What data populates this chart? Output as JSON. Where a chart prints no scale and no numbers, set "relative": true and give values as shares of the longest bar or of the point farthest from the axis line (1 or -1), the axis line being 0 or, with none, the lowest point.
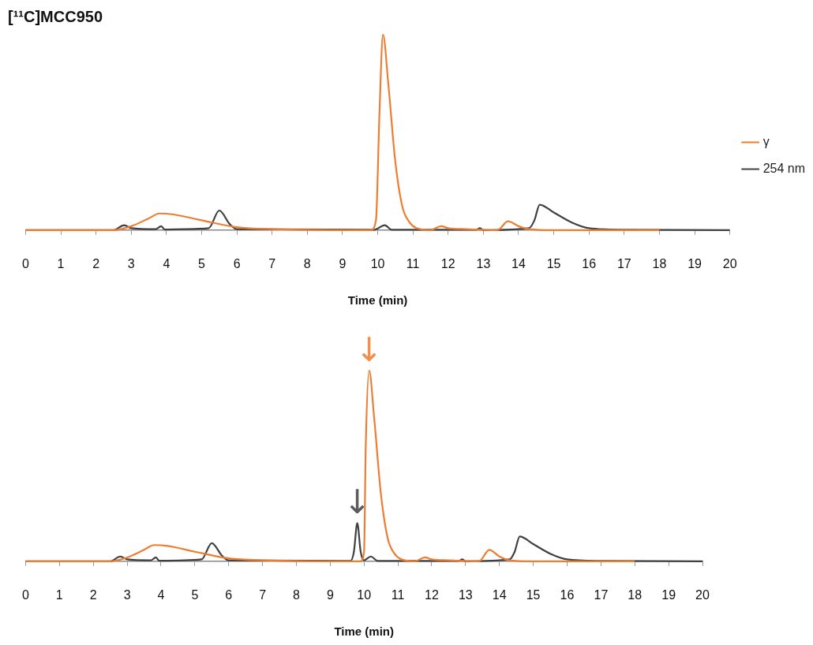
{
  "chart_data": [
    {
      "type": "line",
      "title": "[¹¹C]MCC950",
      "xlabel": "Time (min)",
      "relative": true,
      "xlim": [
        0,
        20
      ],
      "xticks": [
        0,
        1,
        2,
        3,
        4,
        5,
        6,
        7,
        8,
        9,
        10,
        11,
        12,
        13,
        14,
        15,
        16,
        17,
        18,
        19,
        20
      ],
      "grid": false,
      "legend": "right",
      "marker": "none",
      "line_style": "solid",
      "series": [
        {
          "name": "γ",
          "color": "#ed7d31",
          "x": [
            0,
            2.5,
            3,
            3.5,
            3.8,
            4.2,
            5,
            6,
            7,
            9.8,
            9.95,
            10.05,
            10.15,
            10.3,
            10.5,
            10.7,
            10.9,
            11.1,
            11.5,
            11.8,
            12,
            12.5,
            13.4,
            13.7,
            14,
            14.3,
            15,
            18
          ],
          "values": [
            0,
            0,
            0.02,
            0.06,
            0.085,
            0.08,
            0.05,
            0.015,
            0.005,
            0,
            0.05,
            0.6,
            1,
            0.75,
            0.35,
            0.12,
            0.04,
            0.01,
            0,
            0.02,
            0.01,
            0.005,
            0,
            0.045,
            0.02,
            0.005,
            0,
            0
          ]
        },
        {
          "name": "254 nm",
          "color": "#404040",
          "x": [
            0,
            2.5,
            2.8,
            3,
            3.7,
            3.85,
            3.95,
            5.2,
            5.5,
            5.8,
            6,
            9.9,
            10.2,
            10.4,
            12.8,
            12.9,
            13,
            14.3,
            14.45,
            14.6,
            15,
            15.5,
            16,
            17,
            20
          ],
          "values": [
            0,
            0,
            0.025,
            0.01,
            0.005,
            0.02,
            0.003,
            0.01,
            0.1,
            0.03,
            0.005,
            0.002,
            0.025,
            0.002,
            0.002,
            0.01,
            0,
            0.01,
            0.05,
            0.13,
            0.09,
            0.04,
            0.01,
            0.002,
            0
          ]
        }
      ]
    },
    {
      "type": "line",
      "xlabel": "Time (min)",
      "relative": true,
      "xlim": [
        0,
        20
      ],
      "xticks": [
        0,
        1,
        2,
        3,
        4,
        5,
        6,
        7,
        8,
        9,
        10,
        11,
        12,
        13,
        14,
        15,
        16,
        17,
        18,
        19,
        20
      ],
      "grid": false,
      "marker": "none",
      "line_style": "solid",
      "annotations": [
        {
          "text": "↓",
          "x": 10.15,
          "y": 1
        },
        {
          "text": "↓",
          "x": 9.8,
          "y": 0.2
        }
      ],
      "series": [
        {
          "color": "#ed7d31",
          "x": [
            0,
            2.5,
            3,
            3.5,
            3.8,
            4.2,
            5,
            6,
            7,
            9.9,
            10.0,
            10.05,
            10.15,
            10.3,
            10.5,
            10.7,
            10.9,
            11.1,
            11.5,
            11.8,
            12,
            12.5,
            13.4,
            13.7,
            14,
            14.3,
            15,
            18
          ],
          "values": [
            0,
            0,
            0.02,
            0.06,
            0.085,
            0.08,
            0.05,
            0.015,
            0.005,
            0,
            0.05,
            0.6,
            1,
            0.75,
            0.35,
            0.12,
            0.04,
            0.01,
            0,
            0.02,
            0.01,
            0.005,
            0,
            0.06,
            0.025,
            0.005,
            0,
            0
          ]
        },
        {
          "color": "#404040",
          "x": [
            0,
            2.5,
            2.8,
            3,
            3.7,
            3.85,
            3.95,
            5.2,
            5.5,
            5.8,
            6,
            9.6,
            9.7,
            9.8,
            9.9,
            10.0,
            10.2,
            10.4,
            12.8,
            12.9,
            13,
            14.3,
            14.45,
            14.6,
            15,
            15.5,
            16,
            17,
            20
          ],
          "values": [
            0,
            0,
            0.025,
            0.01,
            0.005,
            0.02,
            0.003,
            0.01,
            0.095,
            0.03,
            0.005,
            0.002,
            0.05,
            0.2,
            0.05,
            0.005,
            0.025,
            0.002,
            0.002,
            0.01,
            0,
            0.01,
            0.05,
            0.13,
            0.09,
            0.04,
            0.01,
            0.002,
            0
          ]
        }
      ]
    }
  ]
}
